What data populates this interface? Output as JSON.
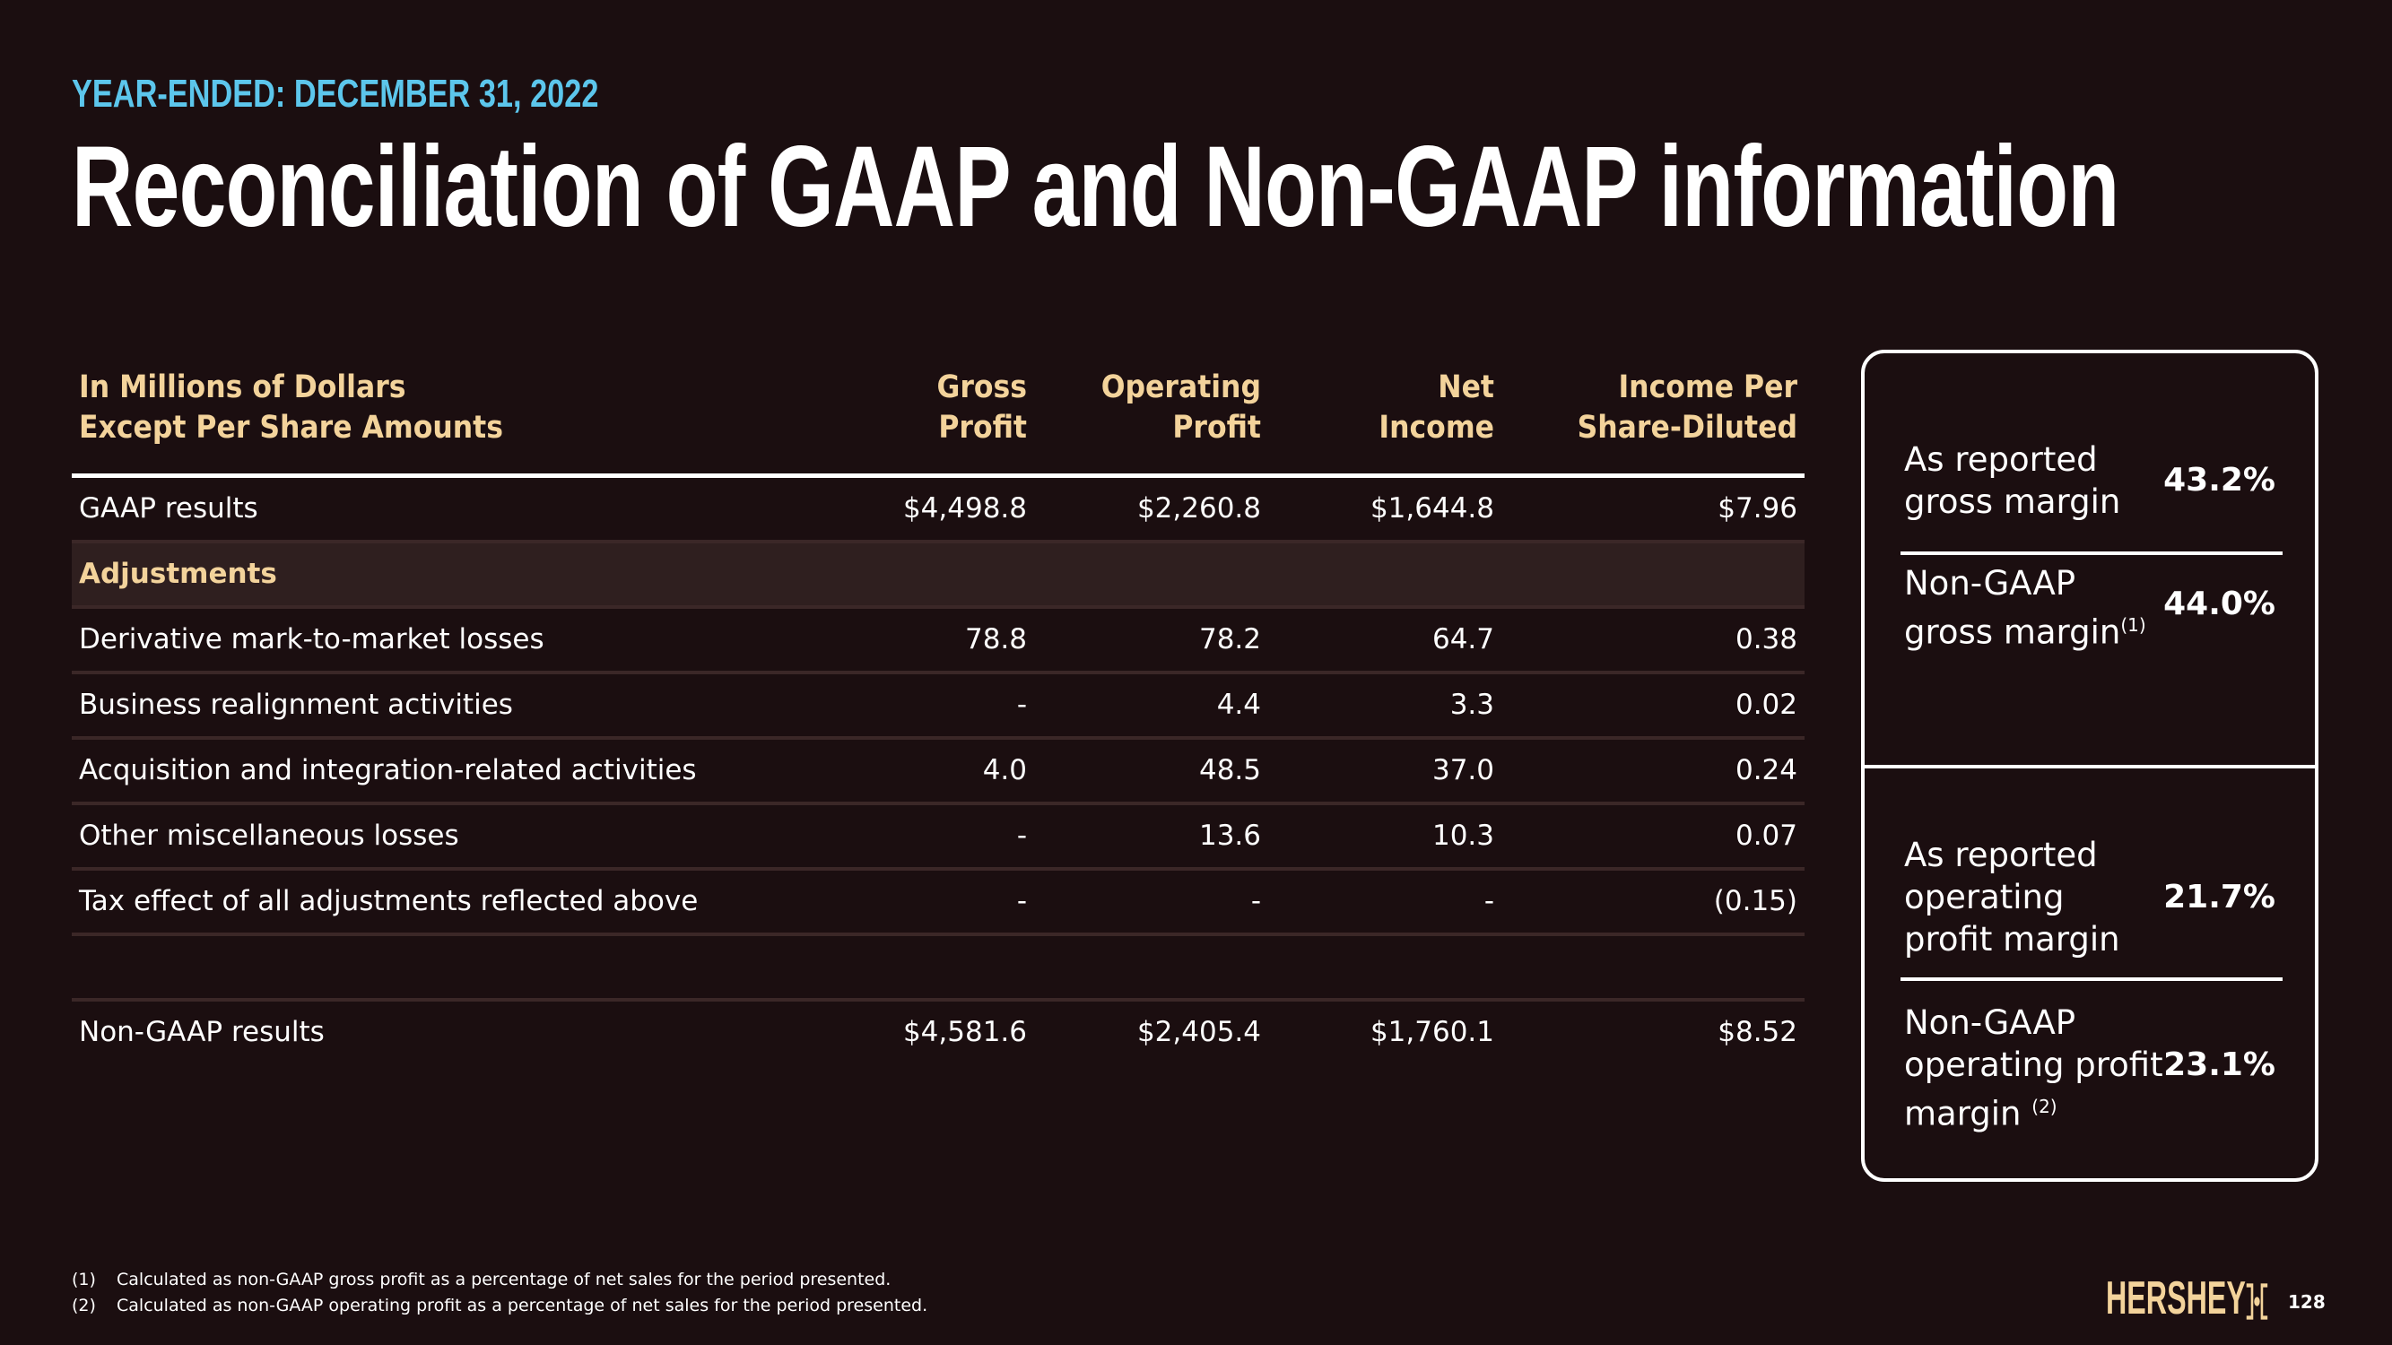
{
  "header": {
    "subtitle": "YEAR-ENDED: DECEMBER 31, 2022",
    "title": "Reconciliation of GAAP and Non-GAAP information"
  },
  "table": {
    "columns": [
      [
        "In Millions of Dollars",
        "Except Per Share Amounts"
      ],
      [
        "Gross",
        "Profit"
      ],
      [
        "Operating",
        "Profit"
      ],
      [
        "Net",
        "Income"
      ],
      [
        "Income Per",
        "Share-Diluted"
      ]
    ],
    "rows": [
      {
        "label": "GAAP results",
        "values": [
          "$4,498.8",
          "$2,260.8",
          "$1,644.8",
          "$7.96"
        ]
      },
      {
        "label": "Adjustments",
        "values": [
          "",
          "",
          "",
          ""
        ]
      },
      {
        "label": "Derivative mark-to-market losses",
        "values": [
          "78.8",
          "78.2",
          "64.7",
          "0.38"
        ]
      },
      {
        "label": "Business realignment activities",
        "values": [
          "-",
          "4.4",
          "3.3",
          "0.02"
        ]
      },
      {
        "label": "Acquisition and integration-related activities",
        "values": [
          "4.0",
          "48.5",
          "37.0",
          "0.24"
        ]
      },
      {
        "label": "Other miscellaneous losses",
        "values": [
          "-",
          "13.6",
          "10.3",
          "0.07"
        ]
      },
      {
        "label": "Tax effect of all adjustments reflected above",
        "values": [
          "-",
          "-",
          "-",
          "(0.15)"
        ]
      },
      {
        "label": "Non-GAAP results",
        "values": [
          "$4,581.6",
          "$2,405.4",
          "$1,760.1",
          "$8.52"
        ]
      }
    ]
  },
  "margins": [
    {
      "label": [
        "As reported",
        "gross margin"
      ],
      "sup": "",
      "value": "43.2%"
    },
    {
      "label": [
        "Non-GAAP",
        "gross margin"
      ],
      "sup": "(1)",
      "value": "44.0%"
    },
    {
      "label": [
        "As reported",
        "operating",
        "profit margin"
      ],
      "sup": "",
      "value": "21.7%"
    },
    {
      "label": [
        "Non-GAAP",
        "operating profit",
        "margin "
      ],
      "sup": "(2)",
      "value": "23.1%"
    }
  ],
  "footnotes": [
    {
      "num": "(1)",
      "text": "Calculated as non-GAAP gross profit as a percentage of net sales for the period presented."
    },
    {
      "num": "(2)",
      "text": "Calculated as non-GAAP operating profit as a percentage of net sales for the period presented."
    }
  ],
  "brand": {
    "logo": "HERSHEY'S",
    "page_number": "128"
  },
  "colors": {
    "background": "#1b0e10",
    "accent_blue": "#5cc6ec",
    "header_cream": "#f3d39b",
    "adjustments_row": "#2f1f1f"
  }
}
